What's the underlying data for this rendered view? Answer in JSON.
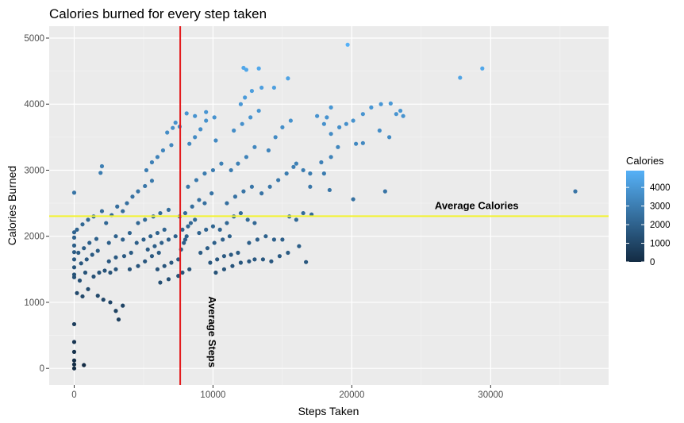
{
  "chart_data": {
    "type": "scatter",
    "title": "Calories burned for every step taken",
    "xlabel": "Steps Taken",
    "ylabel": "Calories Burned",
    "xlim": [
      -1800,
      38500
    ],
    "ylim": [
      -250,
      5180
    ],
    "x_ticks": [
      0,
      10000,
      20000,
      30000
    ],
    "y_ticks": [
      0,
      1000,
      2000,
      3000,
      4000,
      5000
    ],
    "grid": true,
    "vline": {
      "x": 7638,
      "label": "Average Steps",
      "color": "#e31a1c"
    },
    "hline": {
      "y": 2304,
      "label": "Average Calories",
      "color": "#f2f230"
    },
    "color_scale": {
      "title": "Calories",
      "range": [
        0,
        4900
      ],
      "ticks": [
        0,
        1000,
        2000,
        3000,
        4000
      ],
      "low_color": "#132b43",
      "high_color": "#56b1f7"
    },
    "points": [
      [
        0,
        0
      ],
      [
        0,
        60
      ],
      [
        0,
        120
      ],
      [
        0,
        250
      ],
      [
        0,
        400
      ],
      [
        0,
        670
      ],
      [
        700,
        50
      ],
      [
        0,
        2660
      ],
      [
        0,
        1380
      ],
      [
        0,
        1420
      ],
      [
        0,
        1530
      ],
      [
        0,
        1650
      ],
      [
        0,
        1760
      ],
      [
        0,
        1860
      ],
      [
        0,
        1980
      ],
      [
        0,
        2060
      ],
      [
        200,
        1140
      ],
      [
        400,
        1330
      ],
      [
        600,
        1090
      ],
      [
        800,
        1450
      ],
      [
        1000,
        1200
      ],
      [
        200,
        2100
      ],
      [
        600,
        2180
      ],
      [
        1000,
        2250
      ],
      [
        1400,
        2300
      ],
      [
        2000,
        2380
      ],
      [
        300,
        1750
      ],
      [
        700,
        1820
      ],
      [
        1100,
        1900
      ],
      [
        1600,
        1960
      ],
      [
        500,
        1590
      ],
      [
        900,
        1650
      ],
      [
        1300,
        1720
      ],
      [
        1700,
        1780
      ],
      [
        1400,
        1390
      ],
      [
        1800,
        1450
      ],
      [
        2200,
        1480
      ],
      [
        2600,
        1450
      ],
      [
        3000,
        1500
      ],
      [
        1700,
        1100
      ],
      [
        2100,
        1040
      ],
      [
        2600,
        1000
      ],
      [
        3000,
        870
      ],
      [
        3500,
        950
      ],
      [
        3200,
        740
      ],
      [
        1900,
        2960
      ],
      [
        2000,
        3060
      ],
      [
        2300,
        2200
      ],
      [
        2700,
        2320
      ],
      [
        3100,
        2450
      ],
      [
        3500,
        2380
      ],
      [
        2500,
        1900
      ],
      [
        3000,
        2000
      ],
      [
        3500,
        1950
      ],
      [
        4000,
        2050
      ],
      [
        2500,
        1620
      ],
      [
        3000,
        1680
      ],
      [
        3600,
        1700
      ],
      [
        4100,
        1750
      ],
      [
        4000,
        1500
      ],
      [
        4600,
        1550
      ],
      [
        5100,
        1620
      ],
      [
        5600,
        1700
      ],
      [
        6100,
        1750
      ],
      [
        3800,
        2500
      ],
      [
        4200,
        2600
      ],
      [
        4600,
        2680
      ],
      [
        5100,
        2760
      ],
      [
        5600,
        2840
      ],
      [
        5200,
        3000
      ],
      [
        5600,
        3120
      ],
      [
        6000,
        3200
      ],
      [
        6400,
        3300
      ],
      [
        7000,
        3380
      ],
      [
        6700,
        3570
      ],
      [
        7100,
        3640
      ],
      [
        7300,
        3720
      ],
      [
        7600,
        3660
      ],
      [
        4500,
        1900
      ],
      [
        5000,
        1950
      ],
      [
        5500,
        2000
      ],
      [
        6000,
        2050
      ],
      [
        6500,
        2100
      ],
      [
        5300,
        1800
      ],
      [
        5800,
        1850
      ],
      [
        6300,
        1900
      ],
      [
        6800,
        1950
      ],
      [
        7300,
        2000
      ],
      [
        4600,
        2200
      ],
      [
        5100,
        2250
      ],
      [
        5700,
        2300
      ],
      [
        6200,
        2350
      ],
      [
        6800,
        2400
      ],
      [
        6000,
        1500
      ],
      [
        6500,
        1550
      ],
      [
        7000,
        1600
      ],
      [
        7500,
        1650
      ],
      [
        6200,
        1300
      ],
      [
        6800,
        1350
      ],
      [
        7500,
        1400
      ],
      [
        7800,
        1450
      ],
      [
        8300,
        1500
      ],
      [
        7700,
        1800
      ],
      [
        7900,
        1900
      ],
      [
        8000,
        1950
      ],
      [
        8100,
        2000
      ],
      [
        7800,
        2100
      ],
      [
        8200,
        2150
      ],
      [
        8400,
        2200
      ],
      [
        7600,
        2300
      ],
      [
        8000,
        2350
      ],
      [
        8700,
        2250
      ],
      [
        8500,
        2450
      ],
      [
        9000,
        2550
      ],
      [
        9400,
        2500
      ],
      [
        9900,
        2650
      ],
      [
        8200,
        2750
      ],
      [
        8800,
        2850
      ],
      [
        9400,
        2950
      ],
      [
        10000,
        3000
      ],
      [
        10600,
        3100
      ],
      [
        8300,
        3400
      ],
      [
        8700,
        3500
      ],
      [
        9100,
        3620
      ],
      [
        9500,
        3750
      ],
      [
        10200,
        3450
      ],
      [
        8100,
        3860
      ],
      [
        8700,
        3820
      ],
      [
        9500,
        3880
      ],
      [
        10100,
        3800
      ],
      [
        9000,
        2050
      ],
      [
        9500,
        2100
      ],
      [
        10000,
        2150
      ],
      [
        10500,
        2100
      ],
      [
        11000,
        2200
      ],
      [
        9100,
        1750
      ],
      [
        9600,
        1820
      ],
      [
        10100,
        1900
      ],
      [
        10700,
        1950
      ],
      [
        11200,
        2000
      ],
      [
        9800,
        1600
      ],
      [
        10300,
        1650
      ],
      [
        10800,
        1700
      ],
      [
        11300,
        1720
      ],
      [
        11800,
        1750
      ],
      [
        10200,
        1450
      ],
      [
        10800,
        1500
      ],
      [
        11400,
        1550
      ],
      [
        12000,
        1600
      ],
      [
        12600,
        1620
      ],
      [
        11500,
        2300
      ],
      [
        12000,
        2350
      ],
      [
        12500,
        2250
      ],
      [
        13000,
        2200
      ],
      [
        11000,
        2500
      ],
      [
        11600,
        2600
      ],
      [
        12200,
        2680
      ],
      [
        12800,
        2750
      ],
      [
        11300,
        3000
      ],
      [
        11800,
        3100
      ],
      [
        12400,
        3200
      ],
      [
        13000,
        3350
      ],
      [
        11500,
        3600
      ],
      [
        12100,
        3700
      ],
      [
        12700,
        3800
      ],
      [
        13300,
        3900
      ],
      [
        12000,
        4000
      ],
      [
        12300,
        4100
      ],
      [
        12800,
        4200
      ],
      [
        13500,
        4250
      ],
      [
        12200,
        4550
      ],
      [
        12400,
        4520
      ],
      [
        13300,
        4540
      ],
      [
        14400,
        4250
      ],
      [
        15400,
        4390
      ],
      [
        12600,
        1900
      ],
      [
        13200,
        1950
      ],
      [
        13800,
        2000
      ],
      [
        14400,
        1950
      ],
      [
        15000,
        1950
      ],
      [
        13000,
        1650
      ],
      [
        13600,
        1650
      ],
      [
        14200,
        1620
      ],
      [
        14800,
        1700
      ],
      [
        15400,
        1750
      ],
      [
        13500,
        2650
      ],
      [
        14100,
        2750
      ],
      [
        14700,
        2850
      ],
      [
        15300,
        2950
      ],
      [
        15800,
        3050
      ],
      [
        14000,
        3300
      ],
      [
        14500,
        3500
      ],
      [
        15000,
        3650
      ],
      [
        15600,
        3750
      ],
      [
        15500,
        2300
      ],
      [
        16000,
        2250
      ],
      [
        16500,
        2350
      ],
      [
        17100,
        2330
      ],
      [
        16000,
        3100
      ],
      [
        16500,
        3000
      ],
      [
        17000,
        2950
      ],
      [
        17800,
        3120
      ],
      [
        16200,
        1850
      ],
      [
        16700,
        1610
      ],
      [
        17500,
        3820
      ],
      [
        18000,
        3700
      ],
      [
        18500,
        3550
      ],
      [
        19100,
        3650
      ],
      [
        19600,
        3700
      ],
      [
        20100,
        3750
      ],
      [
        17000,
        2750
      ],
      [
        18000,
        2950
      ],
      [
        18500,
        3200
      ],
      [
        19000,
        3350
      ],
      [
        20300,
        3400
      ],
      [
        20800,
        3410
      ],
      [
        19700,
        4900
      ],
      [
        18400,
        2700
      ],
      [
        18500,
        3950
      ],
      [
        18200,
        3800
      ],
      [
        20100,
        2560
      ],
      [
        20800,
        3850
      ],
      [
        21400,
        3950
      ],
      [
        22100,
        4000
      ],
      [
        22700,
        3500
      ],
      [
        23200,
        3850
      ],
      [
        23500,
        3900
      ],
      [
        22000,
        3600
      ],
      [
        22400,
        2680
      ],
      [
        22800,
        4010
      ],
      [
        23700,
        3820
      ],
      [
        27800,
        4400
      ],
      [
        29400,
        4540
      ],
      [
        36100,
        2680
      ]
    ]
  }
}
